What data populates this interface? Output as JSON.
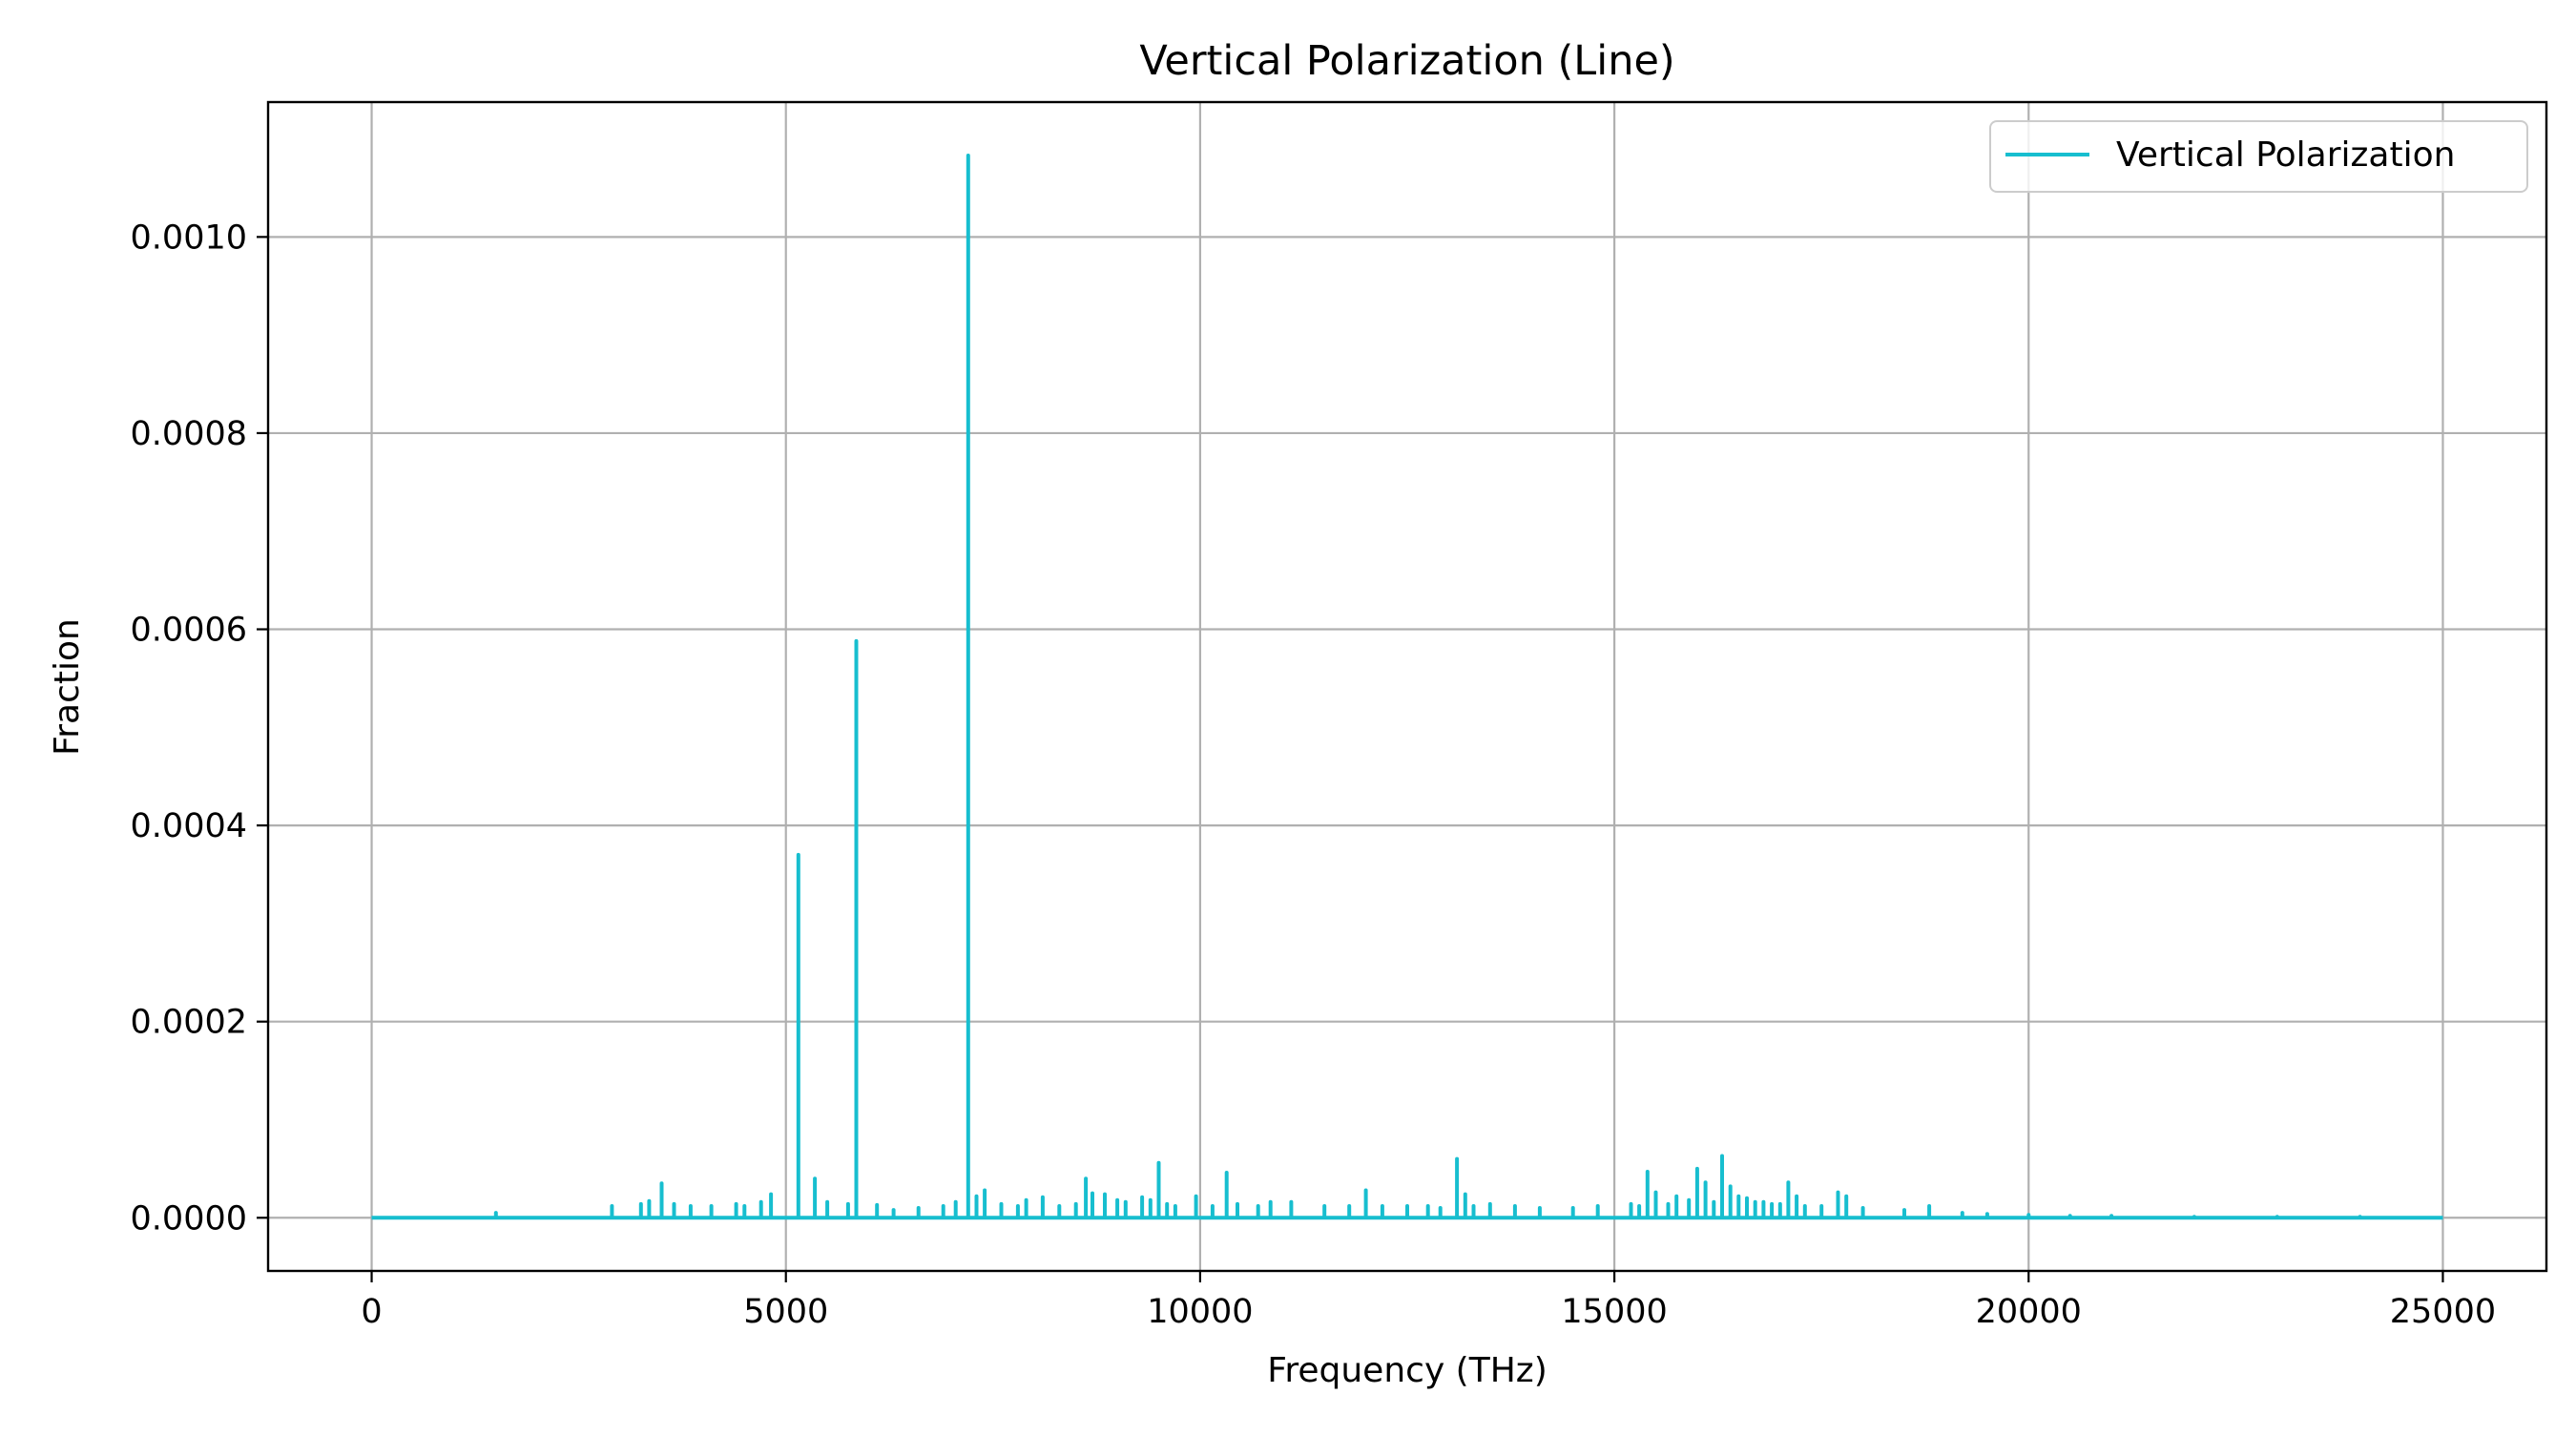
{
  "chart_data": {
    "type": "line",
    "title": "Vertical Polarization (Line)",
    "xlabel": "Frequency (THz)",
    "ylabel": "Fraction",
    "xlim": [
      -1250,
      26250
    ],
    "ylim": [
      -5.42e-05,
      0.0011375
    ],
    "xticks": [
      0,
      5000,
      10000,
      15000,
      20000,
      25000
    ],
    "xtick_labels": [
      "0",
      "5000",
      "10000",
      "15000",
      "20000",
      "25000"
    ],
    "yticks": [
      0,
      0.0002,
      0.0004,
      0.0006,
      0.0008,
      0.001
    ],
    "ytick_labels": [
      "0.0000",
      "0.0002",
      "0.0004",
      "0.0006",
      "0.0008",
      "0.0010"
    ],
    "grid": true,
    "legend_position": "top-right",
    "series": [
      {
        "name": "Vertical Polarization",
        "color": "#17becf",
        "x": [
          0,
          1500,
          2900,
          3250,
          3350,
          3500,
          3650,
          3850,
          4100,
          4400,
          4500,
          4700,
          4820,
          5150,
          5350,
          5500,
          5750,
          5850,
          6100,
          6300,
          6600,
          6900,
          7050,
          7200,
          7300,
          7400,
          7600,
          7800,
          7900,
          8100,
          8300,
          8500,
          8620,
          8700,
          8850,
          9000,
          9100,
          9300,
          9400,
          9500,
          9600,
          9700,
          9950,
          10150,
          10320,
          10450,
          10700,
          10850,
          11100,
          11500,
          11800,
          12000,
          12200,
          12500,
          12750,
          12900,
          13100,
          13200,
          13300,
          13500,
          13800,
          14100,
          14500,
          14800,
          15200,
          15300,
          15400,
          15500,
          15650,
          15750,
          15900,
          16000,
          16100,
          16200,
          16300,
          16400,
          16500,
          16600,
          16700,
          16800,
          16900,
          17000,
          17100,
          17200,
          17300,
          17500,
          17700,
          17800,
          18000,
          18500,
          18800,
          19200,
          19500,
          20000,
          20500,
          21000,
          22000,
          23000,
          24000,
          25000
        ],
        "y": [
          0,
          5e-06,
          1.2e-05,
          1.4e-05,
          1.7e-05,
          3.5e-05,
          1.4e-05,
          1.2e-05,
          1.2e-05,
          1.4e-05,
          1.2e-05,
          1.6e-05,
          2.4e-05,
          0.00037,
          4e-05,
          1.6e-05,
          1.4e-05,
          0.000588,
          1.3e-05,
          8e-06,
          1e-05,
          1.2e-05,
          1.6e-05,
          0.001083,
          2.2e-05,
          2.8e-05,
          1.4e-05,
          1.2e-05,
          1.8e-05,
          2.1e-05,
          1.2e-05,
          1.4e-05,
          4e-05,
          2.5e-05,
          2.4e-05,
          1.8e-05,
          1.6e-05,
          2.1e-05,
          1.8e-05,
          5.6e-05,
          1.4e-05,
          1.2e-05,
          2.2e-05,
          1.2e-05,
          4.6e-05,
          1.4e-05,
          1.2e-05,
          1.6e-05,
          1.6e-05,
          1.2e-05,
          1.2e-05,
          2.8e-05,
          1.2e-05,
          1.2e-05,
          1.2e-05,
          1e-05,
          6e-05,
          2.4e-05,
          1.2e-05,
          1.4e-05,
          1.2e-05,
          1e-05,
          1e-05,
          1.2e-05,
          1.4e-05,
          1.2e-05,
          4.7e-05,
          2.6e-05,
          1.4e-05,
          2.2e-05,
          1.8e-05,
          5e-05,
          3.6e-05,
          1.6e-05,
          6.3e-05,
          3.2e-05,
          2.2e-05,
          2e-05,
          1.6e-05,
          1.6e-05,
          1.4e-05,
          1.4e-05,
          3.6e-05,
          2.2e-05,
          1.2e-05,
          1.2e-05,
          2.6e-05,
          2.2e-05,
          1e-05,
          8e-06,
          1.2e-05,
          5e-06,
          4e-06,
          3e-06,
          2e-06,
          2e-06,
          1e-06,
          1e-06,
          1e-06,
          0
        ]
      }
    ]
  }
}
